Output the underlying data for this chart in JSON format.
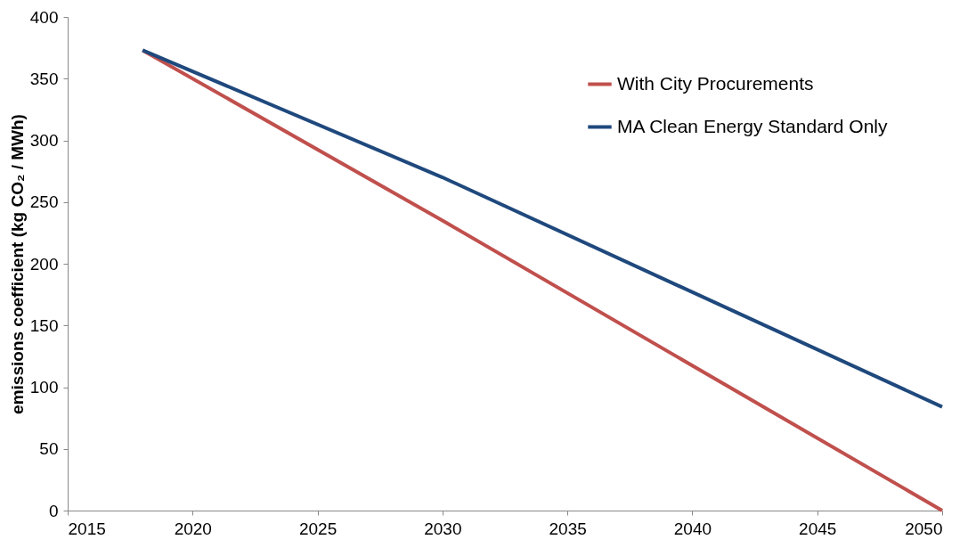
{
  "chart_data": {
    "type": "line",
    "ylabel": "emissions coefficient (kg CO₂ / MWh)",
    "x": [
      2018,
      2030,
      2050
    ],
    "xlim": [
      2015,
      2050
    ],
    "xticks": [
      2015,
      2020,
      2025,
      2030,
      2035,
      2040,
      2045,
      2050
    ],
    "ylim": [
      0,
      400
    ],
    "yticks": [
      0,
      50,
      100,
      150,
      200,
      250,
      300,
      350,
      400
    ],
    "grid": false,
    "legend": "top right",
    "series": [
      {
        "name": "With City Procurements",
        "color": "#c0504d",
        "values": [
          373,
          235,
          0
        ]
      },
      {
        "name": "MA Clean Energy Standard Only",
        "color": "#1f497d",
        "values": [
          373,
          270,
          84
        ]
      }
    ]
  }
}
